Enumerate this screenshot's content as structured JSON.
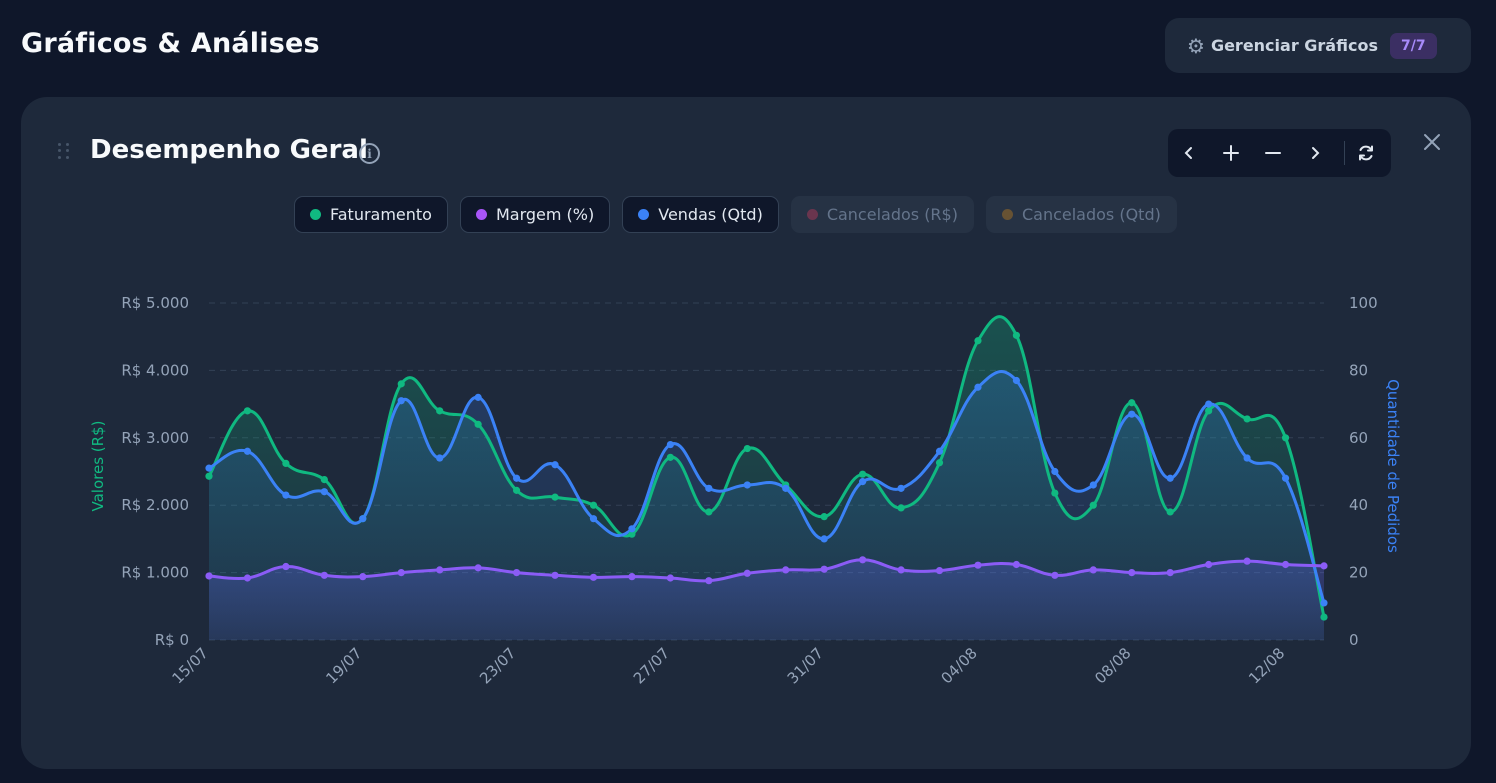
{
  "header": {
    "title": "Gráficos & Análises",
    "manage_label": "Gerenciar Gráficos",
    "manage_badge": "7/7"
  },
  "card": {
    "title": "Desempenho Geral",
    "info_icon": "info-icon",
    "toolbar": [
      "chevron-left-icon",
      "plus-icon",
      "minus-icon",
      "chevron-right-icon",
      "refresh-icon"
    ],
    "close_icon": "close-icon"
  },
  "legend": [
    {
      "label": "Faturamento",
      "color": "#10b981",
      "active": true
    },
    {
      "label": "Margem (%)",
      "color": "#a855f7",
      "active": true
    },
    {
      "label": "Vendas (Qtd)",
      "color": "#3b82f6",
      "active": true
    },
    {
      "label": "Cancelados (R$)",
      "color": "#be3a5a",
      "active": false
    },
    {
      "label": "Cancelados (Qtd)",
      "color": "#b7791f",
      "active": false
    }
  ],
  "colors": {
    "faturamento": "#10b981",
    "margem": "#8b5cf6",
    "vendas": "#3b82f6",
    "grid": "#334155"
  },
  "chart_data": {
    "type": "line",
    "x": [
      "15/07",
      "16/07",
      "17/07",
      "18/07",
      "19/07",
      "20/07",
      "21/07",
      "22/07",
      "23/07",
      "24/07",
      "25/07",
      "26/07",
      "27/07",
      "28/07",
      "29/07",
      "30/07",
      "31/07",
      "01/08",
      "02/08",
      "03/08",
      "04/08",
      "05/08",
      "06/08",
      "07/08",
      "08/08",
      "09/08",
      "10/08",
      "11/08",
      "12/08",
      "13/08"
    ],
    "x_tick_labels": [
      "15/07",
      "19/07",
      "23/07",
      "27/07",
      "31/07",
      "04/08",
      "08/08",
      "12/08"
    ],
    "y_left": {
      "label": "Valores (R$)",
      "range": [
        0,
        5000
      ],
      "ticks": [
        "R$ 0",
        "R$ 1.000",
        "R$ 2.000",
        "R$ 3.000",
        "R$ 4.000",
        "R$ 5.000"
      ]
    },
    "y_right": {
      "label": "Quantidade de Pedidos",
      "range": [
        0,
        100
      ],
      "ticks": [
        "0",
        "20",
        "40",
        "60",
        "80",
        "100"
      ]
    },
    "grid": true,
    "series": [
      {
        "name": "Faturamento",
        "axis": "left",
        "values": [
          2430,
          3400,
          2620,
          2380,
          1800,
          3800,
          3400,
          3200,
          2220,
          2120,
          2000,
          1570,
          2710,
          1900,
          2840,
          2300,
          1830,
          2460,
          1960,
          2630,
          4440,
          4520,
          2180,
          2000,
          3520,
          1900,
          3400,
          3280,
          3000,
          340
        ]
      },
      {
        "name": "Margem (%)",
        "axis": "left",
        "values": [
          950,
          920,
          1090,
          960,
          940,
          1000,
          1040,
          1070,
          1000,
          960,
          930,
          940,
          920,
          880,
          990,
          1040,
          1050,
          1190,
          1040,
          1030,
          1110,
          1120,
          960,
          1040,
          1000,
          1000,
          1120,
          1170,
          1120,
          1100
        ]
      },
      {
        "name": "Vendas (Qtd)",
        "axis": "right",
        "values": [
          51,
          56,
          43,
          44,
          36,
          71,
          54,
          72,
          48,
          52,
          36,
          33,
          58,
          45,
          46,
          45,
          30,
          47,
          45,
          56,
          75,
          77,
          50,
          46,
          67,
          48,
          70,
          54,
          48,
          11
        ]
      }
    ]
  }
}
